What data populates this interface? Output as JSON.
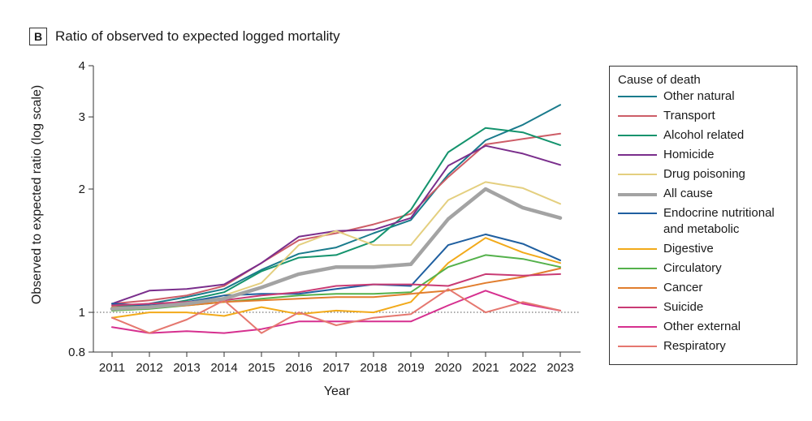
{
  "panel": {
    "label": "B",
    "title": "Ratio of observed to expected logged mortality"
  },
  "chart_data": {
    "type": "line",
    "title": "Ratio of observed to expected logged mortality",
    "xlabel": "Year",
    "ylabel": "Observed to expected ratio (log scale)",
    "yscale": "log",
    "ylim": [
      0.8,
      4
    ],
    "yticks": [
      0.8,
      1,
      2,
      3,
      4
    ],
    "ytick_labels": [
      "0.8",
      "1",
      "2",
      "3",
      "4"
    ],
    "reference_line": 1,
    "x": [
      2011,
      2012,
      2013,
      2014,
      2015,
      2016,
      2017,
      2018,
      2019,
      2020,
      2021,
      2022,
      2023
    ],
    "series": [
      {
        "name": "Other natural",
        "color": "#1a7b8c",
        "width": 2,
        "values": [
          1.03,
          1.05,
          1.09,
          1.14,
          1.27,
          1.39,
          1.44,
          1.56,
          1.68,
          2.17,
          2.63,
          2.87,
          3.21
        ]
      },
      {
        "name": "Transport",
        "color": "#cd5d67",
        "width": 2,
        "values": [
          1.05,
          1.07,
          1.1,
          1.16,
          1.32,
          1.5,
          1.56,
          1.64,
          1.74,
          2.14,
          2.57,
          2.65,
          2.73
        ]
      },
      {
        "name": "Alcohol related",
        "color": "#14936d",
        "width": 2,
        "values": [
          1.05,
          1.03,
          1.07,
          1.12,
          1.26,
          1.36,
          1.38,
          1.49,
          1.78,
          2.46,
          2.82,
          2.75,
          2.56
        ]
      },
      {
        "name": "Homicide",
        "color": "#7a2e8c",
        "width": 2,
        "values": [
          1.05,
          1.13,
          1.14,
          1.17,
          1.32,
          1.53,
          1.58,
          1.59,
          1.7,
          2.28,
          2.55,
          2.44,
          2.29
        ]
      },
      {
        "name": "Drug poisoning",
        "color": "#e4cf7f",
        "width": 2,
        "values": [
          1.01,
          1.02,
          1.05,
          1.1,
          1.18,
          1.46,
          1.58,
          1.46,
          1.46,
          1.88,
          2.08,
          2.01,
          1.84
        ]
      },
      {
        "name": "All cause",
        "color": "#a3a3a3",
        "width": 4.5,
        "values": [
          1.02,
          1.03,
          1.05,
          1.08,
          1.15,
          1.24,
          1.29,
          1.29,
          1.31,
          1.69,
          2.0,
          1.8,
          1.7
        ]
      },
      {
        "name": "Endocrine nutritional and metabolic",
        "color": "#1f5fa0",
        "width": 2,
        "values": [
          1.05,
          1.04,
          1.06,
          1.1,
          1.11,
          1.11,
          1.14,
          1.17,
          1.16,
          1.46,
          1.55,
          1.47,
          1.34
        ]
      },
      {
        "name": "Digestive",
        "color": "#f2aa1a",
        "width": 2,
        "values": [
          0.97,
          1.0,
          1.0,
          0.98,
          1.03,
          0.99,
          1.01,
          1.0,
          1.06,
          1.32,
          1.52,
          1.4,
          1.32
        ]
      },
      {
        "name": "Circulatory",
        "color": "#54b14b",
        "width": 2,
        "values": [
          1.01,
          1.02,
          1.04,
          1.06,
          1.08,
          1.1,
          1.11,
          1.11,
          1.12,
          1.29,
          1.38,
          1.35,
          1.29
        ]
      },
      {
        "name": "Cancer",
        "color": "#e17d2d",
        "width": 2,
        "values": [
          1.03,
          1.03,
          1.04,
          1.06,
          1.07,
          1.08,
          1.09,
          1.09,
          1.11,
          1.13,
          1.18,
          1.22,
          1.28
        ]
      },
      {
        "name": "Suicide",
        "color": "#c93b74",
        "width": 2,
        "values": [
          1.04,
          1.05,
          1.06,
          1.07,
          1.1,
          1.12,
          1.16,
          1.17,
          1.17,
          1.16,
          1.24,
          1.23,
          1.24
        ]
      },
      {
        "name": "Other external",
        "color": "#d6308f",
        "width": 2,
        "values": [
          0.92,
          0.89,
          0.9,
          0.89,
          0.91,
          0.95,
          0.95,
          0.95,
          0.95,
          1.04,
          1.13,
          1.05,
          1.01
        ]
      },
      {
        "name": "Respiratory",
        "color": "#e5776f",
        "width": 2,
        "values": [
          0.97,
          0.89,
          0.96,
          1.07,
          0.89,
          1.0,
          0.93,
          0.97,
          0.99,
          1.14,
          1.0,
          1.06,
          1.01
        ]
      }
    ],
    "legend": {
      "title": "Cause of death",
      "items": [
        {
          "label": "Other natural",
          "color": "#1a7b8c",
          "width": 2
        },
        {
          "label": "Transport",
          "color": "#cd5d67",
          "width": 2
        },
        {
          "label": "Alcohol related",
          "color": "#14936d",
          "width": 2
        },
        {
          "label": "Homicide",
          "color": "#7a2e8c",
          "width": 2
        },
        {
          "label": "Drug poisoning",
          "color": "#e4cf7f",
          "width": 2
        },
        {
          "label": "All cause",
          "color": "#a3a3a3",
          "width": 4.5
        },
        {
          "label": "Endocrine nutritional and metabolic",
          "color": "#1f5fa0",
          "width": 2
        },
        {
          "label": "Digestive",
          "color": "#f2aa1a",
          "width": 2
        },
        {
          "label": "Circulatory",
          "color": "#54b14b",
          "width": 2
        },
        {
          "label": "Cancer",
          "color": "#e17d2d",
          "width": 2
        },
        {
          "label": "Suicide",
          "color": "#c93b74",
          "width": 2
        },
        {
          "label": "Other external",
          "color": "#d6308f",
          "width": 2
        },
        {
          "label": "Respiratory",
          "color": "#e5776f",
          "width": 2
        }
      ]
    }
  }
}
